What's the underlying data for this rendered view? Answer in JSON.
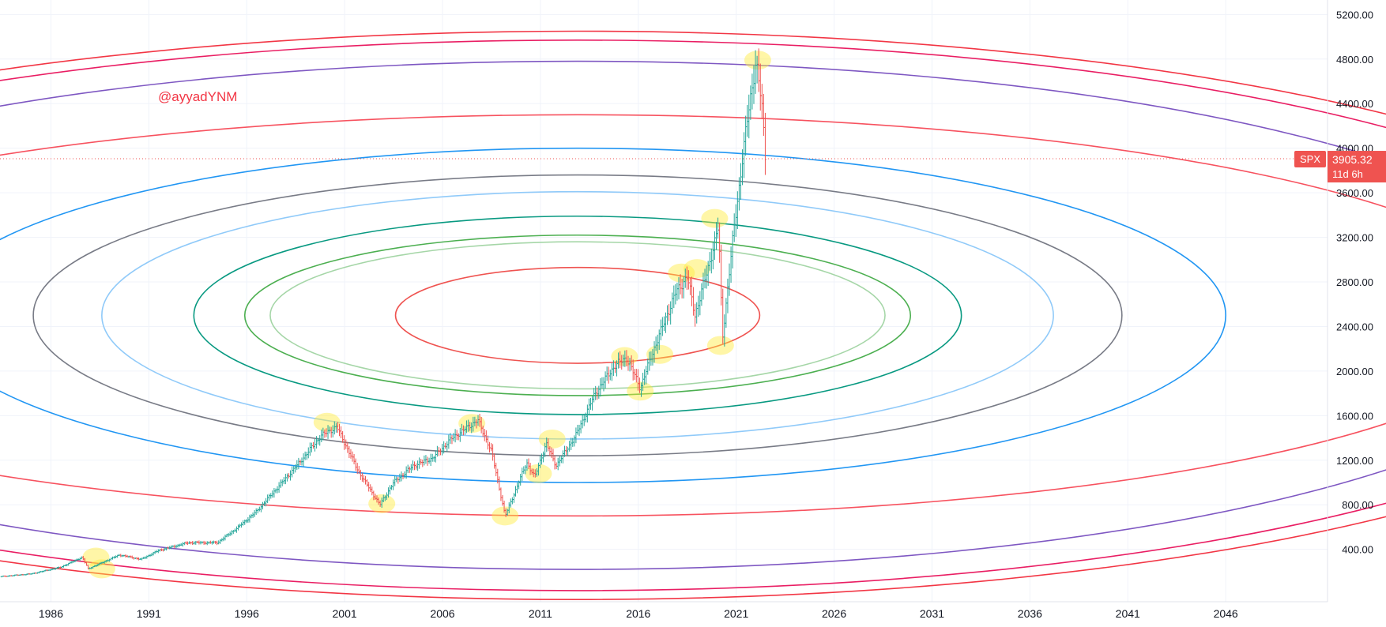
{
  "chart_data": {
    "type": "candlestick",
    "symbol": "SPX",
    "watermark": "@ayyadYNM",
    "last_price": "3905.32",
    "countdown": "11d 6h",
    "xlim": [
      1983.4,
      2051.2
    ],
    "ylim": [
      -70,
      5330
    ],
    "y_ticks": [
      "400.00",
      "800.00",
      "1200.00",
      "1600.00",
      "2000.00",
      "2400.00",
      "2800.00",
      "3200.00",
      "3600.00",
      "4000.00",
      "4400.00",
      "4800.00",
      "5200.00"
    ],
    "x_ticks": [
      "1986",
      "1991",
      "1996",
      "2001",
      "2006",
      "2011",
      "2016",
      "2021",
      "2026",
      "2031",
      "2036",
      "2041",
      "2046"
    ],
    "colors": {
      "up": "#26a69a",
      "down": "#ef5350",
      "label_bg": "#ef5350",
      "watermark": "#f23645",
      "highlight": "#ffeb3b",
      "grid": "#f0f3fa",
      "axis_text": "#131722"
    },
    "price_path": [
      [
        1983.4,
        155
      ],
      [
        1985.0,
        180
      ],
      [
        1986.5,
        240
      ],
      [
        1987.6,
        330
      ],
      [
        1987.9,
        225
      ],
      [
        1989.5,
        350
      ],
      [
        1990.6,
        310
      ],
      [
        1991.5,
        390
      ],
      [
        1993.0,
        460
      ],
      [
        1994.5,
        460
      ],
      [
        1995.5,
        590
      ],
      [
        1996.5,
        740
      ],
      [
        1997.6,
        960
      ],
      [
        1998.7,
        1180
      ],
      [
        1999.8,
        1420
      ],
      [
        2000.6,
        1500
      ],
      [
        2001.7,
        1100
      ],
      [
        2002.8,
        800
      ],
      [
        2003.5,
        1000
      ],
      [
        2004.5,
        1150
      ],
      [
        2005.5,
        1220
      ],
      [
        2006.5,
        1400
      ],
      [
        2007.8,
        1560
      ],
      [
        2008.5,
        1280
      ],
      [
        2009.2,
        700
      ],
      [
        2010.3,
        1180
      ],
      [
        2010.7,
        1050
      ],
      [
        2011.3,
        1350
      ],
      [
        2011.8,
        1150
      ],
      [
        2012.8,
        1420
      ],
      [
        2013.8,
        1800
      ],
      [
        2014.8,
        2050
      ],
      [
        2015.4,
        2120
      ],
      [
        2016.1,
        1850
      ],
      [
        2016.8,
        2200
      ],
      [
        2017.9,
        2700
      ],
      [
        2018.5,
        2850
      ],
      [
        2018.9,
        2500
      ],
      [
        2019.6,
        2950
      ],
      [
        2020.1,
        3300
      ],
      [
        2020.3,
        2300
      ],
      [
        2020.9,
        3300
      ],
      [
        2021.6,
        4300
      ],
      [
        2022.0,
        4780
      ],
      [
        2022.3,
        4400
      ],
      [
        2022.5,
        3905
      ]
    ],
    "ellipse_center": {
      "x": 2012.9,
      "y": 2500
    },
    "ellipses": [
      {
        "rx": 9.3,
        "ry": 430,
        "color": "#ef5350"
      },
      {
        "rx": 15.7,
        "ry": 660,
        "color": "#a5d6a7"
      },
      {
        "rx": 17.0,
        "ry": 720,
        "color": "#4caf50"
      },
      {
        "rx": 19.6,
        "ry": 890,
        "color": "#089981"
      },
      {
        "rx": 24.3,
        "ry": 1110,
        "color": "#90caf9"
      },
      {
        "rx": 27.8,
        "ry": 1260,
        "color": "#787b86"
      },
      {
        "rx": 33.1,
        "ry": 1500,
        "color": "#2196f3"
      },
      {
        "rx": 49.0,
        "ry": 1800,
        "color": "#f7525f"
      },
      {
        "rx": 52.0,
        "ry": 2280,
        "color": "#7e57c2"
      },
      {
        "rx": 56.5,
        "ry": 2470,
        "color": "#e91e63"
      },
      {
        "rx": 58.5,
        "ry": 2550,
        "color": "#f23645"
      }
    ],
    "highlights": [
      {
        "x": 1988.3,
        "y": 330
      },
      {
        "x": 1988.6,
        "y": 225
      },
      {
        "x": 2000.1,
        "y": 1540
      },
      {
        "x": 2002.9,
        "y": 810
      },
      {
        "x": 2007.5,
        "y": 1530
      },
      {
        "x": 2009.2,
        "y": 700
      },
      {
        "x": 2010.9,
        "y": 1080
      },
      {
        "x": 2011.6,
        "y": 1390
      },
      {
        "x": 2015.3,
        "y": 2130
      },
      {
        "x": 2016.1,
        "y": 1820
      },
      {
        "x": 2017.1,
        "y": 2150
      },
      {
        "x": 2018.2,
        "y": 2880
      },
      {
        "x": 2019.0,
        "y": 2920
      },
      {
        "x": 2019.9,
        "y": 3370
      },
      {
        "x": 2020.2,
        "y": 2230
      },
      {
        "x": 2022.1,
        "y": 4790
      }
    ]
  }
}
